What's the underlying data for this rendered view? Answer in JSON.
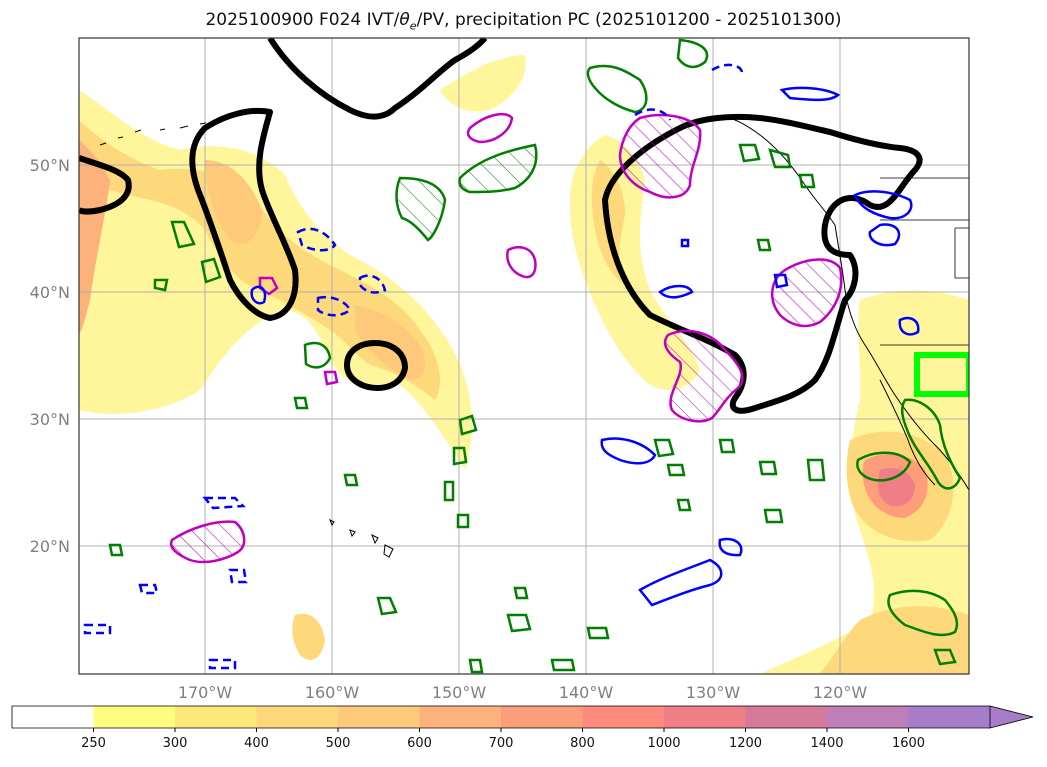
{
  "title_prefix": "2025100900 F024 IVT/",
  "title_theta": "θ",
  "title_sub": "e",
  "title_suffix": "/PV, precipitation PC (2025101200 - 2025101300)",
  "axes": {
    "lat_ticks": [
      "50°N",
      "40°N",
      "30°N",
      "20°N"
    ],
    "lon_ticks": [
      "170°W",
      "160°W",
      "150°W",
      "140°W",
      "130°W",
      "120°W"
    ]
  },
  "colorbar": {
    "ticks": [
      "250",
      "300",
      "400",
      "500",
      "600",
      "700",
      "800",
      "1000",
      "1200",
      "1400",
      "1600"
    ],
    "colors": [
      "#ffffff",
      "#fefd7d",
      "#fee879",
      "#fed97b",
      "#fec97a",
      "#feb27b",
      "#fe9d79",
      "#fe8b7d",
      "#f07e87",
      "#d67a9b",
      "#be7eb8",
      "#a77cc9"
    ],
    "extend": "max"
  },
  "map_colors": {
    "ivt_low": "#fff59a",
    "ivt_mid": "#fed97b",
    "ivt_high": "#fe9d79",
    "theta_e_contour": "#000000",
    "pv_positive": "#007f00",
    "pv_negative": "#0000ff",
    "precip_pc": "#c000c0",
    "highlight_box": "#00ff00"
  }
}
